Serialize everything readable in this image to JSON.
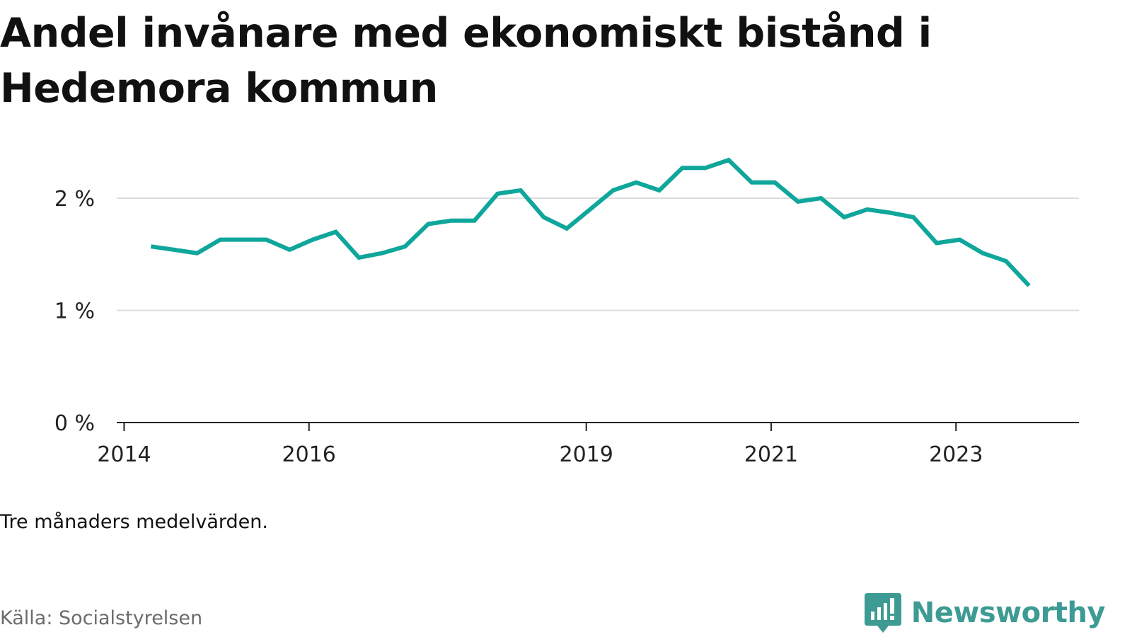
{
  "title": "Andel invånare med ekonomiskt bistånd i Hedemora kommun",
  "note": "Tre månaders medelvärden.",
  "source": "Källa: Socialstyrelsen",
  "brand": "Newsworthy",
  "colors": {
    "line": "#0fa69b",
    "brand": "#3d9b93",
    "grid": "#dddddd",
    "axis": "#222222"
  },
  "icons": {
    "brand_logo": "bar-chart-speech-bubble-icon"
  },
  "chart_data": {
    "type": "line",
    "ylim": [
      0,
      2.5
    ],
    "xlim": [
      2013.92,
      2024.33
    ],
    "y_ticks": [
      {
        "value": 0,
        "label": "0 %"
      },
      {
        "value": 1,
        "label": "1 %"
      },
      {
        "value": 2,
        "label": "2 %"
      }
    ],
    "x_ticks": [
      {
        "value": 2014.0,
        "label": "2014"
      },
      {
        "value": 2016.0,
        "label": "2016"
      },
      {
        "value": 2019.0,
        "label": "2019"
      },
      {
        "value": 2021.0,
        "label": "2021"
      },
      {
        "value": 2023.0,
        "label": "2023"
      }
    ],
    "grid": true,
    "series": [
      {
        "x": [
          2014.29,
          2014.54,
          2014.79,
          2015.04,
          2015.29,
          2015.54,
          2015.79,
          2016.04,
          2016.29,
          2016.54,
          2016.79,
          2017.04,
          2017.29,
          2017.54,
          2017.79,
          2018.04,
          2018.29,
          2018.54,
          2018.79,
          2019.04,
          2019.29,
          2019.54,
          2019.79,
          2020.04,
          2020.29,
          2020.54,
          2020.79,
          2021.04,
          2021.29,
          2021.54,
          2021.79,
          2022.04,
          2022.29,
          2022.54,
          2022.79,
          2023.04,
          2023.29,
          2023.54,
          2023.79
        ],
        "values": [
          1.57,
          1.54,
          1.51,
          1.63,
          1.63,
          1.63,
          1.54,
          1.63,
          1.7,
          1.47,
          1.51,
          1.57,
          1.77,
          1.8,
          1.8,
          2.04,
          2.07,
          1.83,
          1.73,
          1.9,
          2.07,
          2.14,
          2.07,
          2.27,
          2.27,
          2.34,
          2.14,
          2.14,
          1.97,
          2.0,
          1.83,
          1.9,
          1.87,
          1.83,
          1.6,
          1.63,
          1.51,
          1.44,
          1.22
        ]
      }
    ]
  }
}
